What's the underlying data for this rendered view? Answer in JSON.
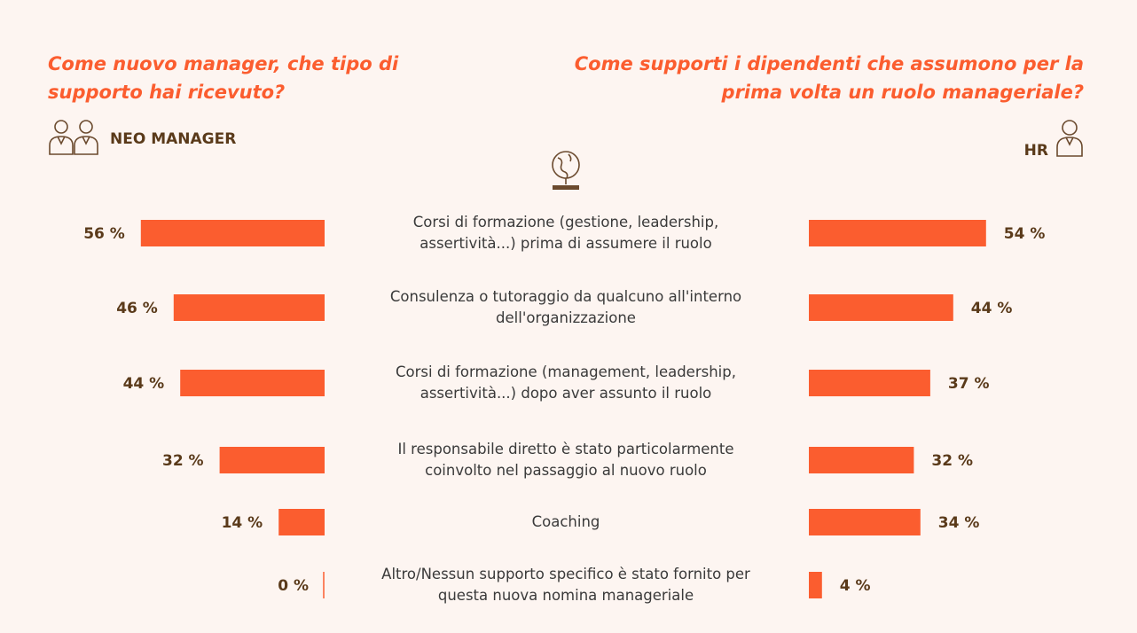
{
  "left_question": "Come nuovo manager, che tipo di supporto hai ricevuto?",
  "right_question": "Come supporti i dipendenti che assumono per la prima volta un ruolo manageriale?",
  "left_group": "NEO MANAGER",
  "right_group": "HR",
  "icons": {
    "left": "two-people-icon",
    "right": "person-icon",
    "center": "trophy-globe-icon"
  },
  "colors": {
    "bar": "#fb5d2f",
    "value_text": "#5a3a1a",
    "question": "#fb5d2f",
    "background": "#fdf5f1"
  },
  "chart_data": {
    "type": "bar",
    "orientation": "horizontal-butterfly",
    "unit": "%",
    "categories": [
      "Corsi di formazione (gestione, leadership, assertività...) prima di assumere il ruolo",
      "Consulenza o tutoraggio da qualcuno all'interno dell'organizzazione",
      "Corsi di formazione (management, leadership, assertività...) dopo aver assunto il ruolo",
      "Il responsabile diretto è stato particolarmente coinvolto nel passaggio al nuovo ruolo",
      "Coaching",
      "Altro/Nessun supporto specifico è stato fornito per questa nuova nomina manageriale"
    ],
    "category_lines": [
      [
        "Corsi di formazione (gestione, leadership,",
        "assertività...) prima di assumere il ruolo"
      ],
      [
        "Consulenza o tutoraggio da qualcuno all'interno",
        "dell'organizzazione"
      ],
      [
        "Corsi di formazione (management, leadership,",
        "assertività...) dopo aver assunto il ruolo"
      ],
      [
        "Il responsabile diretto è stato particolarmente",
        "coinvolto nel passaggio al nuovo ruolo"
      ],
      [
        "Coaching"
      ],
      [
        "Altro/Nessun supporto specifico è stato fornito per",
        "questa nuova nomina manageriale"
      ]
    ],
    "series": [
      {
        "name": "NEO MANAGER",
        "values": [
          56,
          46,
          44,
          32,
          14,
          0
        ],
        "labels": [
          "56 %",
          "46 %",
          "44 %",
          "32 %",
          "14 %",
          "0 %"
        ]
      },
      {
        "name": "HR",
        "values": [
          54,
          44,
          37,
          32,
          34,
          4
        ],
        "labels": [
          "54 %",
          "44 %",
          "37 %",
          "32 %",
          "34 %",
          "4 %"
        ]
      }
    ]
  }
}
